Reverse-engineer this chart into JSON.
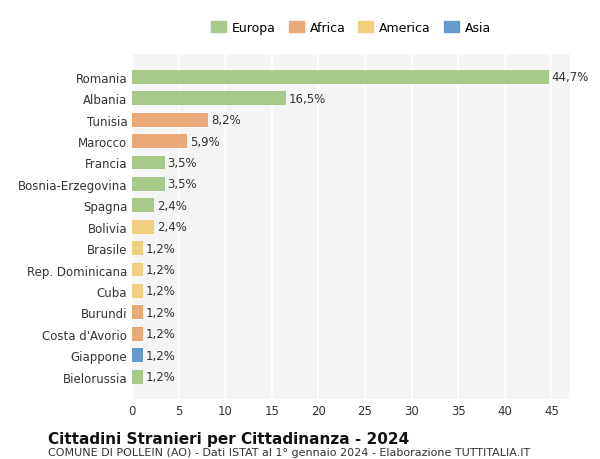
{
  "countries": [
    "Romania",
    "Albania",
    "Tunisia",
    "Marocco",
    "Francia",
    "Bosnia-Erzegovina",
    "Spagna",
    "Bolivia",
    "Brasile",
    "Rep. Dominicana",
    "Cuba",
    "Burundi",
    "Costa d'Avorio",
    "Giappone",
    "Bielorussia"
  ],
  "values": [
    44.7,
    16.5,
    8.2,
    5.9,
    3.5,
    3.5,
    2.4,
    2.4,
    1.2,
    1.2,
    1.2,
    1.2,
    1.2,
    1.2,
    1.2
  ],
  "labels": [
    "44,7%",
    "16,5%",
    "8,2%",
    "5,9%",
    "3,5%",
    "3,5%",
    "2,4%",
    "2,4%",
    "1,2%",
    "1,2%",
    "1,2%",
    "1,2%",
    "1,2%",
    "1,2%",
    "1,2%"
  ],
  "continents": [
    "Europa",
    "Europa",
    "Africa",
    "Africa",
    "Europa",
    "Europa",
    "Europa",
    "America",
    "America",
    "America",
    "America",
    "Africa",
    "Africa",
    "Asia",
    "Europa"
  ],
  "continent_colors": {
    "Europa": "#a8c98a",
    "Africa": "#e8a878",
    "America": "#f0d080",
    "Asia": "#6699cc"
  },
  "legend_colors": {
    "Europa": "#a8c98a",
    "Africa": "#e8a878",
    "America": "#f0d080",
    "Asia": "#6699cc"
  },
  "xlim": [
    0,
    47
  ],
  "xticks": [
    0,
    5,
    10,
    15,
    20,
    25,
    30,
    35,
    40,
    45
  ],
  "title": "Cittadini Stranieri per Cittadinanza - 2024",
  "subtitle": "COMUNE DI POLLEIN (AO) - Dati ISTAT al 1° gennaio 2024 - Elaborazione TUTTITALIA.IT",
  "background_color": "#ffffff",
  "plot_background": "#f5f5f5",
  "grid_color": "#ffffff",
  "bar_height": 0.65,
  "label_fontsize": 8.5,
  "tick_fontsize": 8.5,
  "title_fontsize": 11,
  "subtitle_fontsize": 8
}
